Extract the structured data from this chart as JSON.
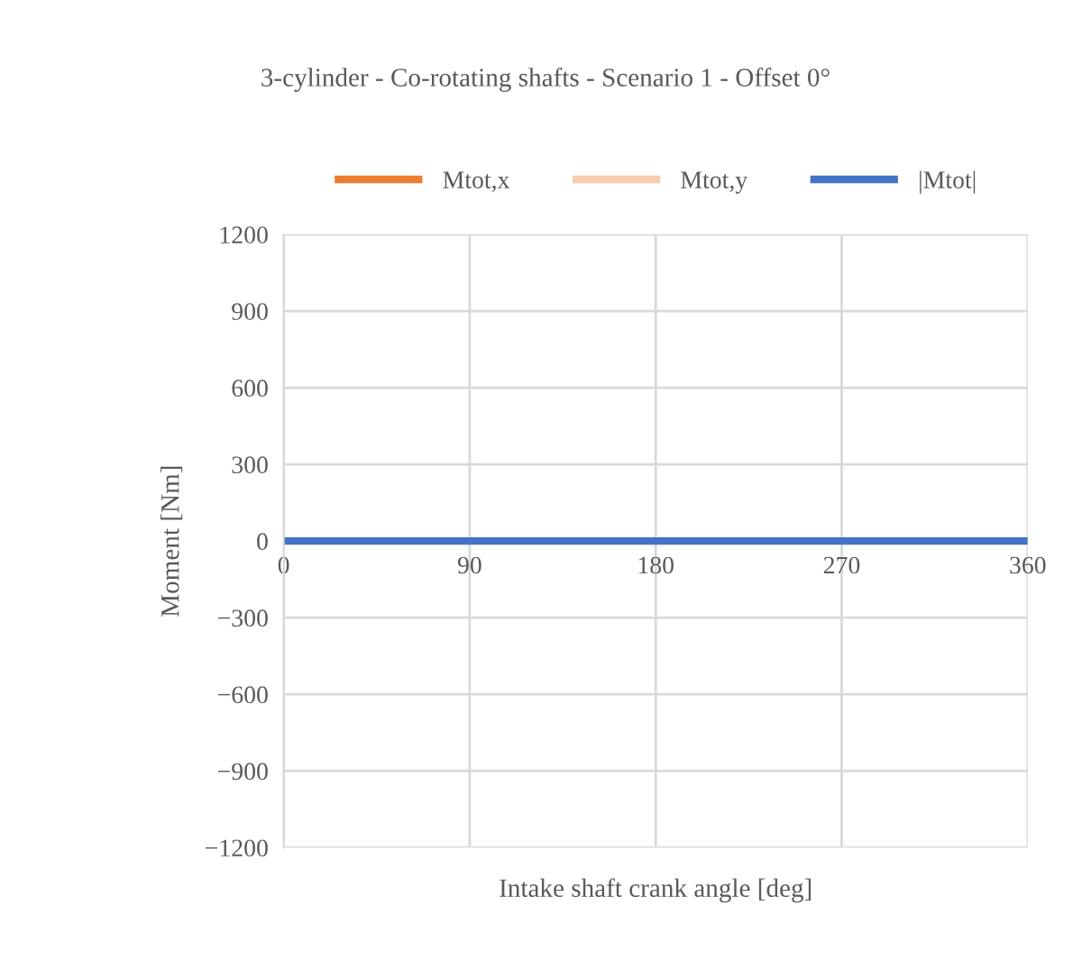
{
  "chart_data": {
    "type": "line",
    "title": "3-cylinder - Co-rotating shafts - Scenario 1 - Offset 0°",
    "xlabel": "Intake shaft crank angle [deg]",
    "ylabel": "Moment [Nm]",
    "x": [
      0,
      360
    ],
    "series": [
      {
        "name": "Mtot,x",
        "color": "#ed7d31",
        "values": [
          null,
          null
        ]
      },
      {
        "name": "Mtot,y",
        "color": "#f8cbad",
        "values": [
          null,
          null
        ]
      },
      {
        "name": "|Mtot|",
        "color": "#4472c4",
        "values": [
          0,
          0
        ]
      }
    ],
    "xlim": [
      0,
      360
    ],
    "xticks": [
      0,
      90,
      180,
      270,
      360
    ],
    "ylim": [
      -1200,
      1200
    ],
    "yticks": [
      {
        "value": -1200,
        "label": "−1200"
      },
      {
        "value": -900,
        "label": "−900"
      },
      {
        "value": -600,
        "label": "−600"
      },
      {
        "value": -300,
        "label": "−300"
      },
      0,
      300,
      600,
      900,
      1200
    ],
    "grid": true,
    "legend": "top",
    "marker": "none",
    "line_style": "solid"
  }
}
